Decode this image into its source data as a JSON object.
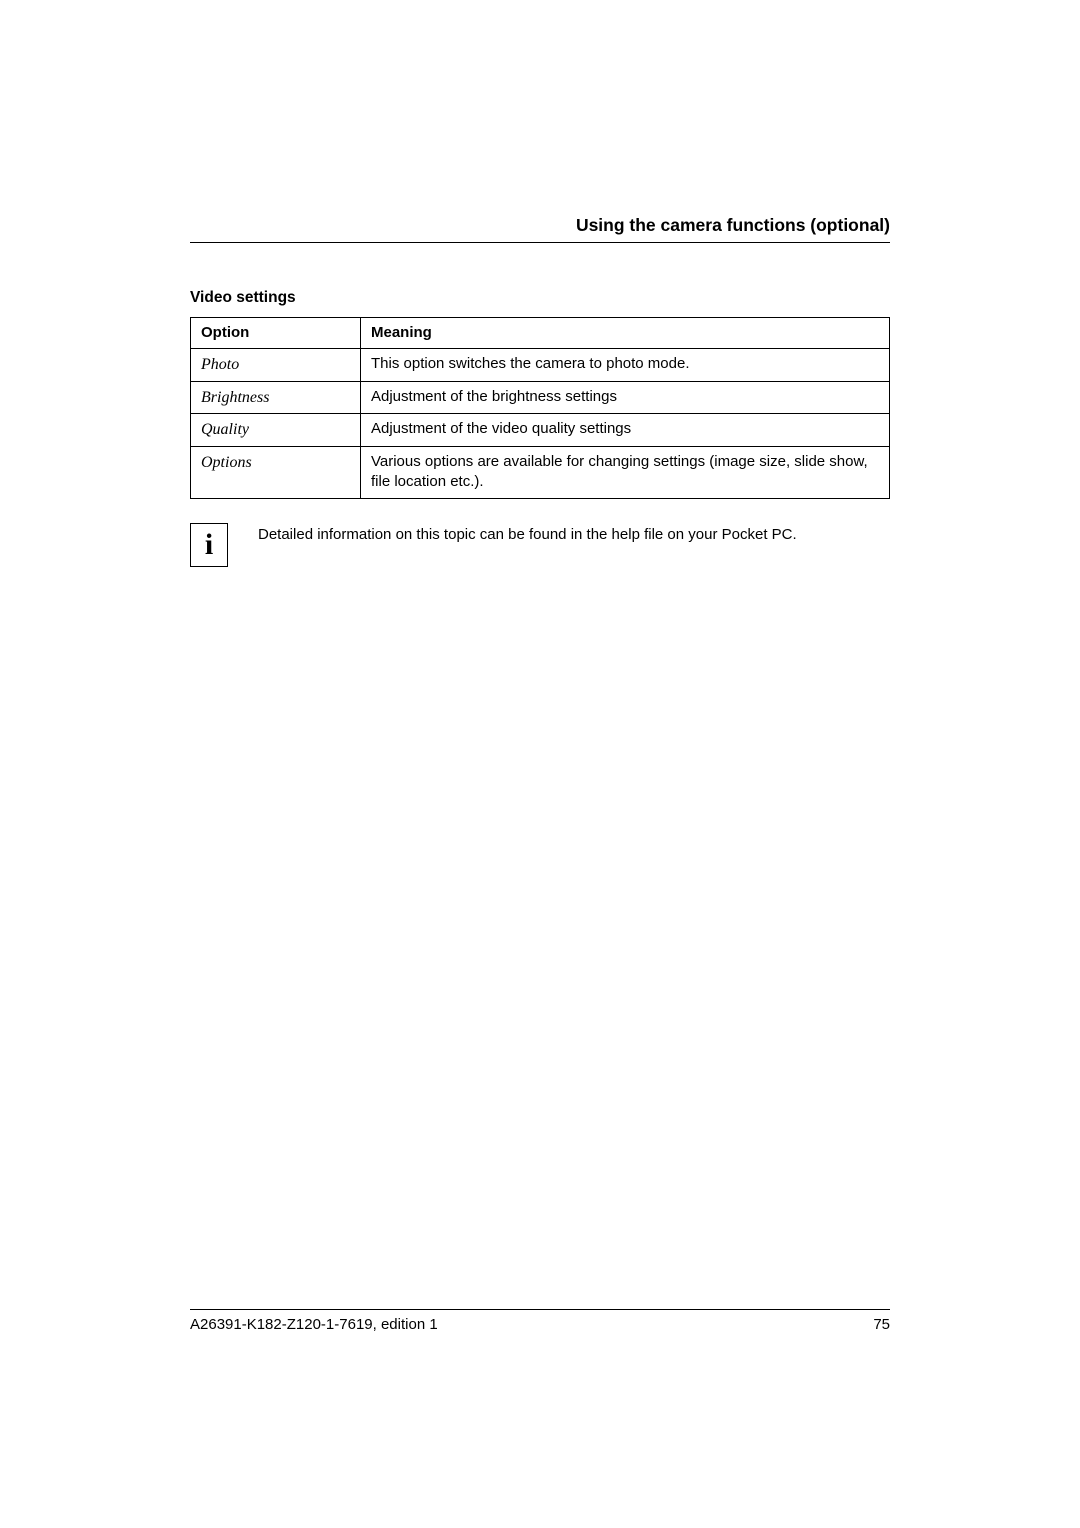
{
  "header": {
    "title": "Using the camera functions (optional)"
  },
  "section": {
    "title": "Video settings"
  },
  "table": {
    "columns": [
      "Option",
      "Meaning"
    ],
    "rows": [
      {
        "option": "Photo",
        "meaning": "This option switches the camera to photo mode."
      },
      {
        "option": "Brightness",
        "meaning": "Adjustment of the brightness settings"
      },
      {
        "option": "Quality",
        "meaning": "Adjustment of the video quality settings"
      },
      {
        "option": "Options",
        "meaning": "Various options are available for changing settings (image size, slide show, file location etc.)."
      }
    ]
  },
  "info": {
    "icon_label": "i",
    "text": "Detailed information on this topic can be found in the help file on your Pocket PC."
  },
  "footer": {
    "doc_id": "A26391-K182-Z120-1-7619, edition 1",
    "page_number": "75"
  }
}
